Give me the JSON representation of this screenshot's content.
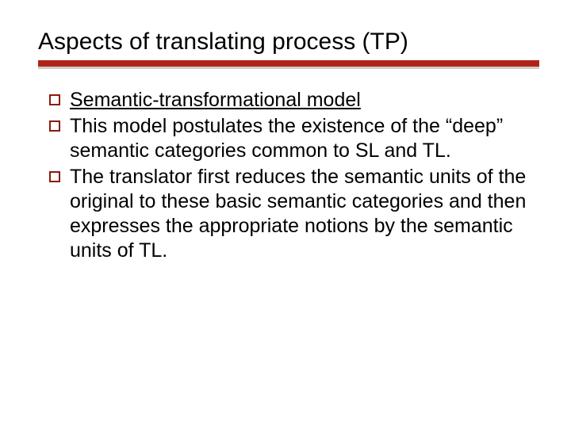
{
  "slide": {
    "title": "Aspects of translating process (TP)",
    "title_fontsize": 30,
    "title_color": "#000000",
    "underline_color": "#b02418",
    "underline_height": 8,
    "underline_shadow_color": "#cccccc",
    "background_color": "#ffffff",
    "bullet_checkbox_border_color": "#8a1a0f",
    "body_fontsize": 25,
    "body_color": "#000000",
    "bullets": [
      {
        "text": "Semantic-transformational model",
        "underlined": true
      },
      {
        "text": "This model postulates the existence of the “deep” semantic categories common to SL and TL.",
        "underlined": false
      },
      {
        "text": "The translator first reduces the semantic units of the original to these basic semantic categories and then expresses the appropriate notions by the semantic units of TL.",
        "underlined": false
      }
    ]
  }
}
